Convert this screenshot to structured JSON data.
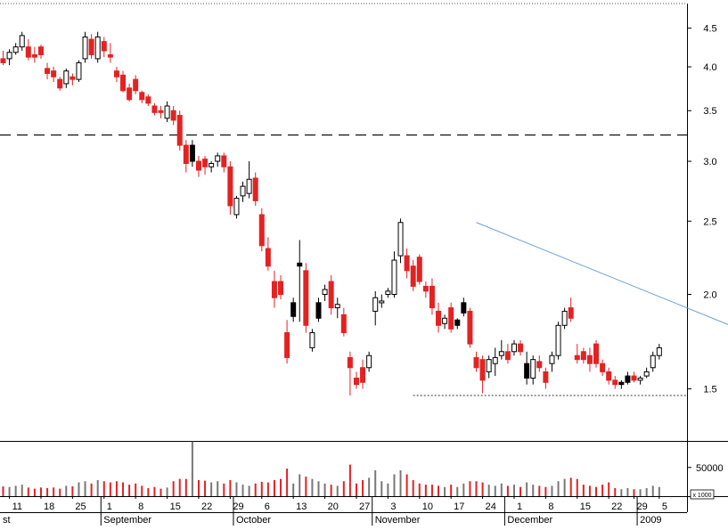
{
  "chart_data": {
    "type": "candlestick",
    "price_axis": {
      "scale": "log",
      "range": [
        1.28,
        4.85
      ],
      "ticks": [
        "4.5",
        "4.0",
        "3.5",
        "3.0",
        "2.5",
        "2.0",
        "1.5"
      ]
    },
    "volume_axis": {
      "range": [
        0,
        90000
      ],
      "ticks": [
        "50000"
      ],
      "unit_label": "x 1000"
    },
    "reference_lines": [
      {
        "kind": "dashed-horizontal",
        "value": 3.25
      },
      {
        "kind": "dotted-horizontal",
        "value": 1.47,
        "from_day": 65
      },
      {
        "kind": "trendline",
        "from": {
          "day": 75,
          "value": 2.49
        },
        "to": {
          "day": 124,
          "value": 1.7
        }
      }
    ],
    "x_ticks": [
      {
        "label": "11",
        "day": 1
      },
      {
        "label": "18",
        "day": 6
      },
      {
        "label": "25",
        "day": 11
      },
      {
        "label": "1",
        "day": 16
      },
      {
        "label": "8",
        "day": 21
      },
      {
        "label": "15",
        "day": 26
      },
      {
        "label": "22",
        "day": 31
      },
      {
        "label": "29",
        "day": 36
      },
      {
        "label": "6",
        "day": 41
      },
      {
        "label": "13",
        "day": 46
      },
      {
        "label": "20",
        "day": 51
      },
      {
        "label": "27",
        "day": 56
      },
      {
        "label": "3",
        "day": 61
      },
      {
        "label": "10",
        "day": 66
      },
      {
        "label": "17",
        "day": 71
      },
      {
        "label": "24",
        "day": 76
      },
      {
        "label": "1",
        "day": 81
      },
      {
        "label": "8",
        "day": 86
      },
      {
        "label": "15",
        "day": 91
      },
      {
        "label": "22",
        "day": 96
      },
      {
        "label": "29",
        "day": 100
      },
      {
        "label": "5",
        "day": 104
      }
    ],
    "months": [
      {
        "label": "st",
        "day": 0
      },
      {
        "label": "September",
        "day": 16
      },
      {
        "label": "October",
        "day": 37
      },
      {
        "label": "November",
        "day": 59
      },
      {
        "label": "December",
        "day": 80
      },
      {
        "label": "2009",
        "day": 101
      }
    ],
    "days": [
      {
        "o": 4.1,
        "h": 4.2,
        "l": 4.02,
        "c": 4.05,
        "v": 17000,
        "d": "down"
      },
      {
        "o": 4.1,
        "h": 4.22,
        "l": 4.02,
        "c": 4.18,
        "v": 16000,
        "d": "up"
      },
      {
        "o": 4.18,
        "h": 4.3,
        "l": 4.15,
        "c": 4.25,
        "v": 18000,
        "d": "up"
      },
      {
        "o": 4.25,
        "h": 4.45,
        "l": 4.2,
        "c": 4.4,
        "v": 20000,
        "d": "up"
      },
      {
        "o": 4.25,
        "h": 4.35,
        "l": 4.08,
        "c": 4.12,
        "v": 15000,
        "d": "down"
      },
      {
        "o": 4.15,
        "h": 4.25,
        "l": 4.05,
        "c": 4.12,
        "v": 13000,
        "d": "down"
      },
      {
        "o": 4.25,
        "h": 4.28,
        "l": 4.1,
        "c": 4.15,
        "v": 15000,
        "d": "down"
      },
      {
        "o": 3.98,
        "h": 4.05,
        "l": 3.85,
        "c": 3.92,
        "v": 14000,
        "d": "down"
      },
      {
        "o": 3.95,
        "h": 4.0,
        "l": 3.82,
        "c": 3.88,
        "v": 15000,
        "d": "down"
      },
      {
        "o": 3.85,
        "h": 3.88,
        "l": 3.72,
        "c": 3.75,
        "v": 13000,
        "d": "down"
      },
      {
        "o": 3.8,
        "h": 3.98,
        "l": 3.75,
        "c": 3.95,
        "v": 18000,
        "d": "up"
      },
      {
        "o": 3.85,
        "h": 3.92,
        "l": 3.78,
        "c": 3.88,
        "v": 17000,
        "d": "down"
      },
      {
        "o": 3.85,
        "h": 4.08,
        "l": 3.82,
        "c": 4.05,
        "v": 24000,
        "d": "up"
      },
      {
        "o": 4.1,
        "h": 4.45,
        "l": 4.05,
        "c": 4.38,
        "v": 26000,
        "d": "up"
      },
      {
        "o": 4.35,
        "h": 4.42,
        "l": 4.1,
        "c": 4.15,
        "v": 22000,
        "d": "down"
      },
      {
        "o": 4.1,
        "h": 4.45,
        "l": 4.05,
        "c": 4.38,
        "v": 28000,
        "d": "up"
      },
      {
        "o": 4.32,
        "h": 4.38,
        "l": 4.12,
        "c": 4.2,
        "v": 26000,
        "d": "down"
      },
      {
        "o": 4.12,
        "h": 4.3,
        "l": 4.05,
        "c": 4.15,
        "v": 24000,
        "d": "down"
      },
      {
        "o": 3.95,
        "h": 4.0,
        "l": 3.82,
        "c": 3.88,
        "v": 26000,
        "d": "down"
      },
      {
        "o": 3.9,
        "h": 3.95,
        "l": 3.7,
        "c": 3.72,
        "v": 24000,
        "d": "down"
      },
      {
        "o": 3.75,
        "h": 3.8,
        "l": 3.6,
        "c": 3.62,
        "v": 20000,
        "d": "down"
      },
      {
        "o": 3.85,
        "h": 3.9,
        "l": 3.68,
        "c": 3.72,
        "v": 22000,
        "d": "down"
      },
      {
        "o": 3.7,
        "h": 3.72,
        "l": 3.58,
        "c": 3.62,
        "v": 18000,
        "d": "down"
      },
      {
        "o": 3.65,
        "h": 3.68,
        "l": 3.55,
        "c": 3.58,
        "v": 14000,
        "d": "down"
      },
      {
        "o": 3.55,
        "h": 3.58,
        "l": 3.45,
        "c": 3.48,
        "v": 16000,
        "d": "down"
      },
      {
        "o": 3.48,
        "h": 3.55,
        "l": 3.42,
        "c": 3.5,
        "v": 13000,
        "d": "down"
      },
      {
        "o": 3.42,
        "h": 3.6,
        "l": 3.38,
        "c": 3.55,
        "v": 15000,
        "d": "up"
      },
      {
        "o": 3.5,
        "h": 3.55,
        "l": 3.35,
        "c": 3.4,
        "v": 26000,
        "d": "down"
      },
      {
        "o": 3.45,
        "h": 3.5,
        "l": 3.1,
        "c": 3.15,
        "v": 30000,
        "d": "down"
      },
      {
        "o": 3.15,
        "h": 3.2,
        "l": 2.9,
        "c": 2.98,
        "v": 30000,
        "d": "down"
      },
      {
        "o": 3.15,
        "h": 3.2,
        "l": 2.95,
        "c": 3.0,
        "v": 95000,
        "d": "neutral"
      },
      {
        "o": 3.0,
        "h": 3.05,
        "l": 2.86,
        "c": 2.92,
        "v": 28000,
        "d": "down"
      },
      {
        "o": 2.95,
        "h": 3.05,
        "l": 2.88,
        "c": 3.02,
        "v": 27000,
        "d": "down"
      },
      {
        "o": 2.95,
        "h": 3.0,
        "l": 2.9,
        "c": 2.98,
        "v": 24000,
        "d": "up"
      },
      {
        "o": 3.0,
        "h": 3.08,
        "l": 2.95,
        "c": 3.05,
        "v": 26000,
        "d": "up"
      },
      {
        "o": 3.05,
        "h": 3.08,
        "l": 2.9,
        "c": 2.95,
        "v": 22000,
        "d": "down"
      },
      {
        "o": 2.95,
        "h": 3.0,
        "l": 2.55,
        "c": 2.62,
        "v": 28000,
        "d": "down"
      },
      {
        "o": 2.55,
        "h": 2.7,
        "l": 2.52,
        "c": 2.68,
        "v": 24000,
        "d": "up"
      },
      {
        "o": 2.7,
        "h": 2.82,
        "l": 2.65,
        "c": 2.78,
        "v": 20000,
        "d": "up"
      },
      {
        "o": 2.72,
        "h": 3.0,
        "l": 2.68,
        "c": 2.84,
        "v": 18000,
        "d": "up"
      },
      {
        "o": 2.85,
        "h": 2.9,
        "l": 2.62,
        "c": 2.66,
        "v": 22000,
        "d": "down"
      },
      {
        "o": 2.55,
        "h": 2.6,
        "l": 2.28,
        "c": 2.32,
        "v": 25000,
        "d": "down"
      },
      {
        "o": 2.3,
        "h": 2.38,
        "l": 2.15,
        "c": 2.18,
        "v": 24000,
        "d": "down"
      },
      {
        "o": 2.08,
        "h": 2.15,
        "l": 1.92,
        "c": 1.98,
        "v": 28000,
        "d": "down"
      },
      {
        "o": 2.08,
        "h": 2.12,
        "l": 1.97,
        "c": 2.0,
        "v": 30000,
        "d": "down"
      },
      {
        "o": 1.78,
        "h": 1.85,
        "l": 1.62,
        "c": 1.65,
        "v": 48000,
        "d": "down"
      },
      {
        "o": 1.95,
        "h": 1.98,
        "l": 1.84,
        "c": 1.87,
        "v": 22000,
        "d": "neutral"
      },
      {
        "o": 2.2,
        "h": 2.36,
        "l": 1.84,
        "c": 2.18,
        "v": 38000,
        "d": "neutral"
      },
      {
        "o": 2.15,
        "h": 2.2,
        "l": 1.78,
        "c": 1.82,
        "v": 34000,
        "d": "down"
      },
      {
        "o": 1.7,
        "h": 1.8,
        "l": 1.68,
        "c": 1.78,
        "v": 30000,
        "d": "up"
      },
      {
        "o": 1.95,
        "h": 1.98,
        "l": 1.84,
        "c": 1.86,
        "v": 26000,
        "d": "neutral"
      },
      {
        "o": 2.0,
        "h": 2.06,
        "l": 1.96,
        "c": 2.03,
        "v": 22000,
        "d": "up"
      },
      {
        "o": 2.08,
        "h": 2.12,
        "l": 1.88,
        "c": 1.92,
        "v": 20000,
        "d": "down"
      },
      {
        "o": 1.92,
        "h": 1.98,
        "l": 1.86,
        "c": 1.94,
        "v": 18000,
        "d": "up"
      },
      {
        "o": 1.88,
        "h": 1.92,
        "l": 1.76,
        "c": 1.78,
        "v": 26000,
        "d": "down"
      },
      {
        "o": 1.65,
        "h": 1.68,
        "l": 1.47,
        "c": 1.6,
        "v": 55000,
        "d": "down"
      },
      {
        "o": 1.55,
        "h": 1.58,
        "l": 1.5,
        "c": 1.52,
        "v": 22000,
        "d": "down"
      },
      {
        "o": 1.6,
        "h": 1.64,
        "l": 1.5,
        "c": 1.53,
        "v": 28000,
        "d": "down"
      },
      {
        "o": 1.6,
        "h": 1.68,
        "l": 1.58,
        "c": 1.66,
        "v": 32000,
        "d": "up"
      },
      {
        "o": 1.9,
        "h": 2.02,
        "l": 1.82,
        "c": 1.98,
        "v": 45000,
        "d": "up"
      },
      {
        "o": 1.95,
        "h": 2.0,
        "l": 1.92,
        "c": 1.96,
        "v": 26000,
        "d": "up"
      },
      {
        "o": 2.0,
        "h": 2.04,
        "l": 1.98,
        "c": 2.02,
        "v": 22000,
        "d": "up"
      },
      {
        "o": 2.0,
        "h": 2.28,
        "l": 1.98,
        "c": 2.22,
        "v": 38000,
        "d": "up"
      },
      {
        "o": 2.25,
        "h": 2.52,
        "l": 2.2,
        "c": 2.49,
        "v": 45000,
        "d": "up"
      },
      {
        "o": 2.25,
        "h": 2.3,
        "l": 2.1,
        "c": 2.15,
        "v": 38000,
        "d": "down"
      },
      {
        "o": 2.18,
        "h": 2.22,
        "l": 2.02,
        "c": 2.05,
        "v": 28000,
        "d": "down"
      },
      {
        "o": 2.24,
        "h": 2.26,
        "l": 2.06,
        "c": 2.08,
        "v": 22000,
        "d": "down"
      },
      {
        "o": 2.05,
        "h": 2.08,
        "l": 1.98,
        "c": 2.02,
        "v": 20000,
        "d": "down"
      },
      {
        "o": 2.05,
        "h": 2.1,
        "l": 1.88,
        "c": 1.92,
        "v": 20000,
        "d": "down"
      },
      {
        "o": 1.9,
        "h": 1.95,
        "l": 1.78,
        "c": 1.82,
        "v": 18000,
        "d": "down"
      },
      {
        "o": 1.83,
        "h": 1.88,
        "l": 1.8,
        "c": 1.86,
        "v": 16000,
        "d": "up"
      },
      {
        "o": 1.92,
        "h": 1.95,
        "l": 1.78,
        "c": 1.8,
        "v": 20000,
        "d": "down"
      },
      {
        "o": 1.82,
        "h": 1.86,
        "l": 1.8,
        "c": 1.85,
        "v": 16000,
        "d": "neutral"
      },
      {
        "o": 1.95,
        "h": 1.98,
        "l": 1.87,
        "c": 1.89,
        "v": 22000,
        "d": "neutral"
      },
      {
        "o": 1.9,
        "h": 1.92,
        "l": 1.7,
        "c": 1.72,
        "v": 26000,
        "d": "down"
      },
      {
        "o": 1.65,
        "h": 1.68,
        "l": 1.58,
        "c": 1.6,
        "v": 26000,
        "d": "down"
      },
      {
        "o": 1.64,
        "h": 1.66,
        "l": 1.48,
        "c": 1.54,
        "v": 24000,
        "d": "down"
      },
      {
        "o": 1.58,
        "h": 1.66,
        "l": 1.55,
        "c": 1.64,
        "v": 20000,
        "d": "up"
      },
      {
        "o": 1.62,
        "h": 1.7,
        "l": 1.56,
        "c": 1.65,
        "v": 18000,
        "d": "up"
      },
      {
        "o": 1.66,
        "h": 1.74,
        "l": 1.64,
        "c": 1.68,
        "v": 22000,
        "d": "up"
      },
      {
        "o": 1.68,
        "h": 1.72,
        "l": 1.62,
        "c": 1.64,
        "v": 18000,
        "d": "down"
      },
      {
        "o": 1.68,
        "h": 1.74,
        "l": 1.66,
        "c": 1.72,
        "v": 20000,
        "d": "up"
      },
      {
        "o": 1.72,
        "h": 1.74,
        "l": 1.66,
        "c": 1.68,
        "v": 16000,
        "d": "down"
      },
      {
        "o": 1.62,
        "h": 1.68,
        "l": 1.52,
        "c": 1.55,
        "v": 24000,
        "d": "neutral"
      },
      {
        "o": 1.55,
        "h": 1.66,
        "l": 1.52,
        "c": 1.64,
        "v": 20000,
        "d": "up"
      },
      {
        "o": 1.63,
        "h": 1.66,
        "l": 1.58,
        "c": 1.6,
        "v": 18000,
        "d": "down"
      },
      {
        "o": 1.58,
        "h": 1.6,
        "l": 1.5,
        "c": 1.53,
        "v": 16000,
        "d": "down"
      },
      {
        "o": 1.62,
        "h": 1.68,
        "l": 1.58,
        "c": 1.66,
        "v": 18000,
        "d": "up"
      },
      {
        "o": 1.66,
        "h": 1.84,
        "l": 1.64,
        "c": 1.82,
        "v": 26000,
        "d": "up"
      },
      {
        "o": 1.82,
        "h": 1.92,
        "l": 1.8,
        "c": 1.9,
        "v": 30000,
        "d": "up"
      },
      {
        "o": 1.92,
        "h": 1.98,
        "l": 1.84,
        "c": 1.86,
        "v": 32000,
        "d": "down"
      },
      {
        "o": 1.64,
        "h": 1.72,
        "l": 1.62,
        "c": 1.66,
        "v": 30000,
        "d": "down"
      },
      {
        "o": 1.68,
        "h": 1.7,
        "l": 1.62,
        "c": 1.64,
        "v": 20000,
        "d": "down"
      },
      {
        "o": 1.66,
        "h": 1.7,
        "l": 1.58,
        "c": 1.62,
        "v": 18000,
        "d": "down"
      },
      {
        "o": 1.72,
        "h": 1.74,
        "l": 1.6,
        "c": 1.62,
        "v": 16000,
        "d": "down"
      },
      {
        "o": 1.62,
        "h": 1.64,
        "l": 1.56,
        "c": 1.58,
        "v": 20000,
        "d": "down"
      },
      {
        "o": 1.58,
        "h": 1.6,
        "l": 1.52,
        "c": 1.54,
        "v": 24000,
        "d": "down"
      },
      {
        "o": 1.54,
        "h": 1.56,
        "l": 1.5,
        "c": 1.52,
        "v": 14000,
        "d": "down"
      },
      {
        "o": 1.52,
        "h": 1.54,
        "l": 1.5,
        "c": 1.53,
        "v": 12000,
        "d": "neutral"
      },
      {
        "o": 1.53,
        "h": 1.58,
        "l": 1.52,
        "c": 1.56,
        "v": 14000,
        "d": "neutral"
      },
      {
        "o": 1.56,
        "h": 1.58,
        "l": 1.53,
        "c": 1.54,
        "v": 12000,
        "d": "down"
      },
      {
        "o": 1.54,
        "h": 1.56,
        "l": 1.52,
        "c": 1.55,
        "v": 12000,
        "d": "up"
      },
      {
        "o": 1.56,
        "h": 1.6,
        "l": 1.55,
        "c": 1.58,
        "v": 14000,
        "d": "up"
      },
      {
        "o": 1.6,
        "h": 1.68,
        "l": 1.58,
        "c": 1.66,
        "v": 18000,
        "d": "up"
      },
      {
        "o": 1.66,
        "h": 1.72,
        "l": 1.64,
        "c": 1.7,
        "v": 16000,
        "d": "up"
      }
    ]
  }
}
